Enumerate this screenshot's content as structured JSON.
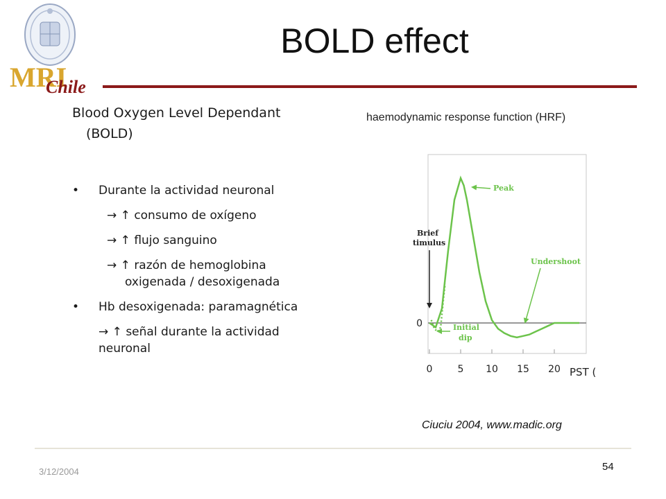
{
  "logo": {
    "text": "MRI",
    "subtext": "Chile",
    "crest_icon": "university-crest-icon"
  },
  "title": "BOLD effect",
  "intro": {
    "line1": "Blood Oxygen Level Dependant",
    "line2": "(BOLD)"
  },
  "bullets": [
    {
      "bullet": "•",
      "text": "Durante la actividad neuronal"
    },
    {
      "arrows": "→ ↑",
      "text": "consumo de oxígeno"
    },
    {
      "arrows": "→ ↑",
      "text": "flujo sanguino"
    },
    {
      "arrows": "→ ↑",
      "text": "razón de hemoglobina",
      "cont": "oxigenada / desoxigenada"
    },
    {
      "bullet": "•",
      "text": "Hb desoxigenada:  paramagnética"
    },
    {
      "arrows": "→ ↑",
      "text": "señal durante la actividad",
      "cont": "neuronal"
    }
  ],
  "hrf_title": "haemodynamic response function (HRF)",
  "chart_data": {
    "type": "line",
    "xlabel": "PST (s)",
    "x_ticks": [
      "0",
      "5",
      "10",
      "15",
      "20"
    ],
    "y_ticks": [
      "0"
    ],
    "xlim": [
      0,
      25
    ],
    "series": [
      {
        "style": "solid",
        "x": [
          0,
          1,
          2,
          3,
          4,
          5,
          5.5,
          6,
          7,
          8,
          9,
          10,
          11,
          12,
          13,
          14,
          15,
          16,
          17,
          18,
          19,
          20,
          22,
          24
        ],
        "y": [
          0,
          -0.03,
          0.1,
          0.5,
          0.85,
          1.0,
          0.95,
          0.85,
          0.6,
          0.35,
          0.15,
          0.02,
          -0.04,
          -0.07,
          -0.09,
          -0.1,
          -0.09,
          -0.08,
          -0.06,
          -0.04,
          -0.02,
          0.0,
          0.0,
          0.0
        ]
      },
      {
        "style": "dotted",
        "x": [
          0.3,
          0.8,
          1.3,
          1.8,
          2.2,
          2.5
        ],
        "y": [
          0.02,
          -0.04,
          -0.06,
          -0.03,
          0.15,
          0.27
        ]
      }
    ],
    "annotations": [
      "Peak",
      "Brief",
      "Stimulus",
      "Undershoot",
      "Initial",
      "dip"
    ],
    "colors": {
      "curve": "#6cc34b",
      "baseline": "#777777",
      "label": "#6cc34b",
      "arrow": "#222222"
    }
  },
  "source": "Ciuciu 2004, www.madic.org",
  "footer": {
    "date": "3/12/2004",
    "page": "54"
  }
}
